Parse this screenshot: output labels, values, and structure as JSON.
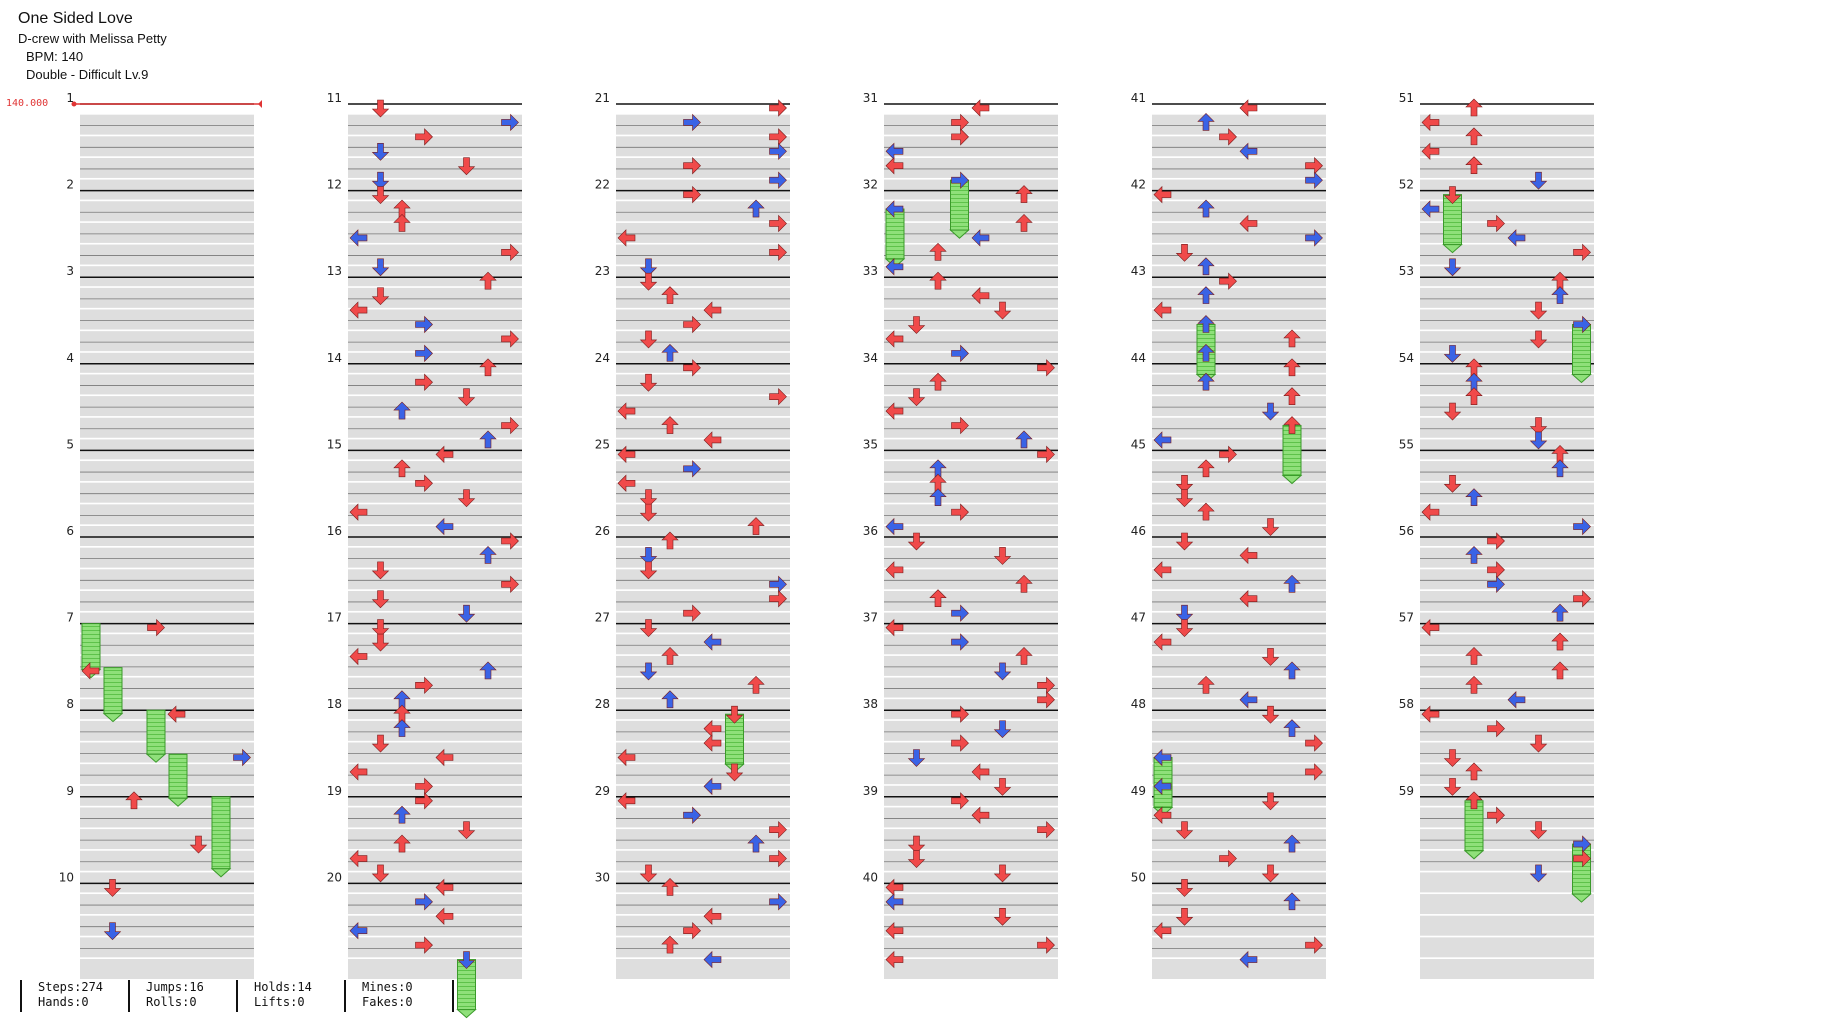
{
  "song": {
    "title": "One Sided Love",
    "artist": "D-crew with Melissa Petty",
    "bpm": "BPM: 140",
    "difficulty": "Double - Difficult Lv.9"
  },
  "bpm_marker": "140.000",
  "colors": {
    "red": "#f04a4a",
    "blue": "#3a63e6",
    "hold": "#7fdc6a",
    "band": "#dedede"
  },
  "measures": [
    "1",
    "2",
    "3",
    "4",
    "5",
    "6",
    "7",
    "8",
    "9",
    "10",
    "11",
    "12",
    "13",
    "14",
    "15",
    "16",
    "17",
    "18",
    "19",
    "20",
    "21",
    "22",
    "23",
    "24",
    "25",
    "26",
    "27",
    "28",
    "29",
    "30",
    "31",
    "32",
    "33",
    "34",
    "35",
    "36",
    "37",
    "38",
    "39",
    "40",
    "41",
    "42",
    "43",
    "44",
    "45",
    "46",
    "47",
    "48",
    "49",
    "50",
    "51",
    "52",
    "53",
    "54",
    "55",
    "56",
    "57",
    "58",
    "59"
  ],
  "stats": {
    "steps": "Steps:274",
    "hands": "Hands:0",
    "jumps": "Jumps:16",
    "rolls": "Rolls:0",
    "holds": "Holds:14",
    "lifts": "Lifts:0",
    "mines": "Mines:0",
    "fakes": "Fakes:0"
  }
}
